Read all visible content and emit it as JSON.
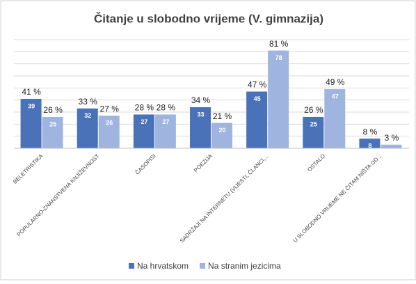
{
  "chart_data": {
    "type": "bar",
    "title": "Čitanje u slobodno vrijeme (V. gimnazija)",
    "categories": [
      "BELETRISTIKA",
      "POPULARNO-ZNANSTVENA KNJIŽEVNOST",
      "ČASOPISI",
      "POEZIJA",
      "SADRŽAJI NA INTERNETU (VIJESTI, ČLANCI,...",
      "OSTALO",
      "U SLOBODNO VRIJEME NE ČITAM NIŠTA OD..."
    ],
    "series": [
      {
        "name": "Na hrvatskom",
        "color": "#4a72b8",
        "values": [
          41,
          33,
          28,
          34,
          47,
          26,
          8
        ],
        "value_labels": [
          "41 %",
          "33 %",
          "28 %",
          "34 %",
          "47 %",
          "26 %",
          "8 %"
        ],
        "counts": [
          39,
          32,
          27,
          33,
          45,
          25,
          8
        ]
      },
      {
        "name": "Na stranim jezicima",
        "color": "#9fb4de",
        "values": [
          26,
          27,
          28,
          21,
          81,
          49,
          3
        ],
        "value_labels": [
          "26 %",
          "27 %",
          "28 %",
          "21 %",
          "81 %",
          "49 %",
          "3 %"
        ],
        "counts": [
          25,
          26,
          27,
          20,
          78,
          47,
          null
        ]
      }
    ],
    "ylim": [
      0,
      90
    ],
    "yticks": [
      0,
      10,
      20,
      30,
      40,
      50,
      60,
      70,
      80,
      90
    ],
    "grid": true,
    "legend": "bottom"
  }
}
